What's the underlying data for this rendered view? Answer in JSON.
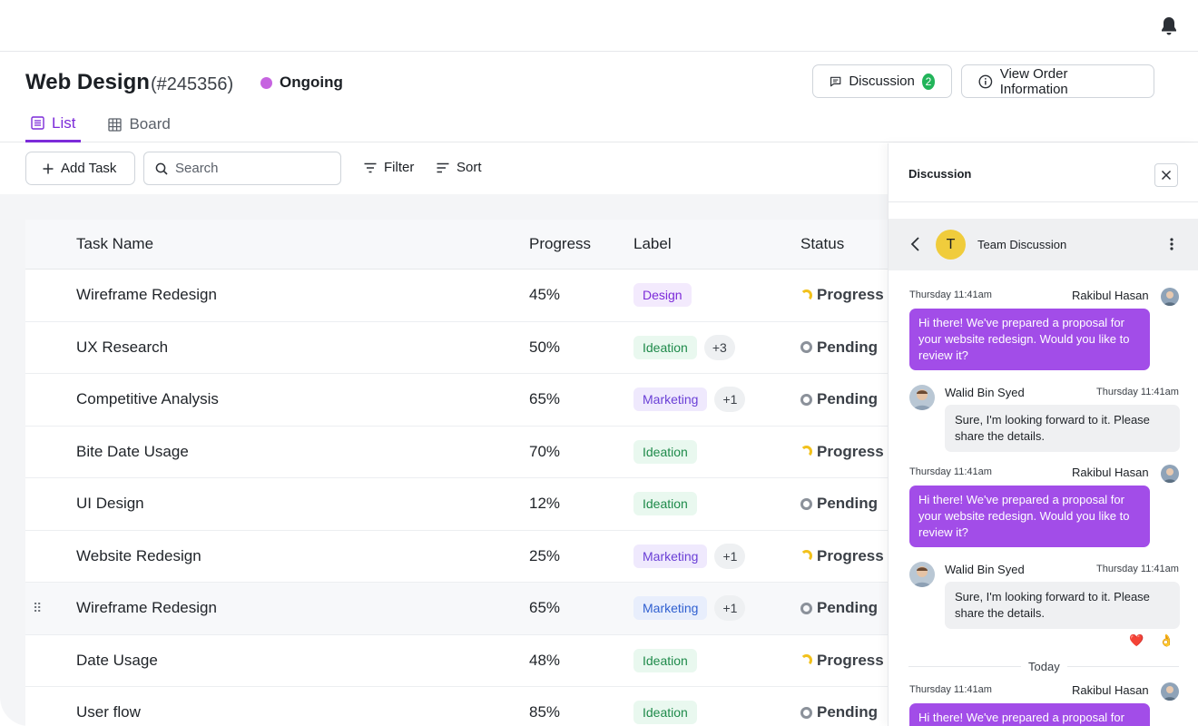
{
  "project": {
    "title": "Web Design",
    "order_id": "(#245356)",
    "status": "Ongoing",
    "status_color": "#c664e0"
  },
  "header_buttons": {
    "discussion_label": "Discussion",
    "discussion_count": "2",
    "view_order_label": "View Order Information"
  },
  "tabs": [
    {
      "label": "List",
      "active": true
    },
    {
      "label": "Board",
      "active": false
    }
  ],
  "toolbar": {
    "add_task_label": "Add Task",
    "search_placeholder": "Search",
    "filter_label": "Filter",
    "sort_label": "Sort"
  },
  "table": {
    "columns": [
      "Task Name",
      "Progress",
      "Label",
      "Status"
    ],
    "rows": [
      {
        "name": "Wireframe Redesign",
        "progress": "45%",
        "label": "Design",
        "more": "",
        "status": "Progress"
      },
      {
        "name": "UX Research",
        "progress": "50%",
        "label": "Ideation",
        "more": "+3",
        "status": "Pending"
      },
      {
        "name": "Competitive Analysis",
        "progress": "65%",
        "label": "Marketing",
        "more": "+1",
        "status": "Pending"
      },
      {
        "name": "Bite Date Usage",
        "progress": "70%",
        "label": "Ideation",
        "more": "",
        "status": "Progress"
      },
      {
        "name": "UI Design",
        "progress": "12%",
        "label": "Ideation",
        "more": "",
        "status": "Pending"
      },
      {
        "name": "Website Redesign",
        "progress": "25%",
        "label": "Marketing",
        "more": "+1",
        "status": "Progress"
      },
      {
        "name": "Wireframe Redesign",
        "progress": "65%",
        "label": "Marketing",
        "more": "+1",
        "status": "Pending"
      },
      {
        "name": "Date Usage",
        "progress": "48%",
        "label": "Ideation",
        "more": "",
        "status": "Progress"
      },
      {
        "name": "User flow",
        "progress": "85%",
        "label": "Ideation",
        "more": "",
        "status": "Pending"
      }
    ]
  },
  "discussion_panel": {
    "title": "Discussion",
    "thread_name": "Team Discussion",
    "thread_initial": "T",
    "messages": [
      {
        "time": "Thursday 11:41am",
        "author": "Rakibul Hasan",
        "text": "Hi there! We've prepared a proposal for your website redesign. Would you like to review it?"
      },
      {
        "time": "Thursday 11:41am",
        "author": "Walid Bin Syed",
        "text": "Sure, I'm looking forward to it. Please share the details."
      },
      {
        "time": "Thursday 11:41am",
        "author": "Rakibul Hasan",
        "text": "Hi there! We've prepared a proposal for your website redesign. Would you like to review it?"
      },
      {
        "time": "Thursday 11:41am",
        "author": "Walid Bin Syed",
        "text": "Sure, I'm looking forward to it. Please share the details."
      },
      {
        "time": "Thursday 11:41am",
        "author": "Rakibul Hasan",
        "text": "Hi there! We've prepared a proposal for"
      }
    ],
    "reactions": [
      "❤️",
      "👌"
    ],
    "separator": "Today"
  },
  "colors": {
    "accent": "#7c2bd9",
    "bubble": "#a24de8",
    "pending": "#8b919a",
    "progress": "#f2c11c",
    "badge_green": "#22b45a"
  }
}
